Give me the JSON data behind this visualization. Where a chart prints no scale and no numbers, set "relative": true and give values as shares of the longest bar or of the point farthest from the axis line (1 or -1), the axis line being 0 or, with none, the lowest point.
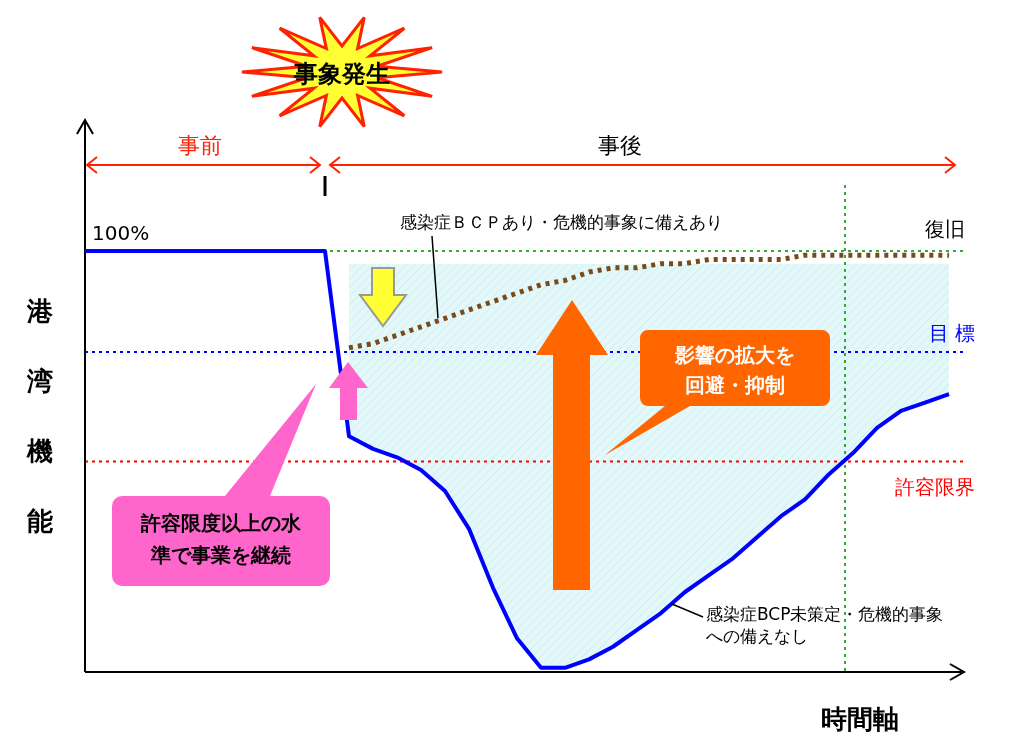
{
  "chart_data": {
    "type": "line",
    "relative": true,
    "xlabel": "時間軸",
    "ylabel": "港湾機能",
    "grid": false,
    "categories": [
      null,
      null,
      null,
      null,
      null,
      null,
      null,
      null,
      null,
      null,
      null,
      null,
      null,
      null,
      null,
      null,
      null,
      null,
      null,
      null,
      null,
      null,
      null,
      null,
      null,
      null,
      null,
      null,
      null,
      null,
      null,
      null,
      null,
      null,
      null,
      null,
      null
    ],
    "series": [
      {
        "name": "感染症ＢＣＰあり・危機的事象に備えあり",
        "color": "#7a4a1a",
        "line_style": "dotted",
        "values": [
          null,
          null,
          null,
          null,
          null,
          null,
          null,
          null,
          null,
          null,
          null,
          0.77,
          0.78,
          0.8,
          0.82,
          0.84,
          0.86,
          0.88,
          0.9,
          0.92,
          0.93,
          0.95,
          0.96,
          0.96,
          0.97,
          0.97,
          0.98,
          0.98,
          0.98,
          0.98,
          0.99,
          0.99,
          0.99,
          0.99,
          0.99,
          0.99,
          0.99
        ]
      },
      {
        "name": "感染症BCP未策定・危機的事象への備えなし",
        "color": "#0000ff",
        "line_style": "solid",
        "values": [
          1,
          1,
          1,
          1,
          1,
          1,
          1,
          1,
          1,
          1,
          1,
          0.56,
          0.53,
          0.51,
          0.48,
          0.43,
          0.34,
          0.2,
          0.08,
          0.01,
          0.01,
          0.03,
          0.06,
          0.1,
          0.14,
          0.19,
          0.23,
          0.27,
          0.32,
          0.37,
          0.41,
          0.47,
          0.52,
          0.58,
          0.62,
          0.64,
          0.66
        ],
        "lower": [
          null,
          null,
          null,
          null,
          null,
          null,
          null,
          null,
          null,
          null,
          null,
          0.56,
          0.53,
          0.51,
          0.48,
          0.43,
          0.34,
          0.2,
          0.08,
          0.01,
          0.01,
          0.03,
          0.06,
          0.1,
          0.14,
          0.19,
          0.23,
          0.27,
          0.32,
          0.37,
          0.41,
          0.47,
          0.52,
          0.58,
          0.62,
          0.64,
          0.66
        ],
        "upper": [
          null,
          null,
          null,
          null,
          null,
          null,
          null,
          null,
          null,
          null,
          null,
          0.97,
          0.97,
          0.97,
          0.97,
          0.97,
          0.97,
          0.97,
          0.97,
          0.97,
          0.97,
          0.97,
          0.97,
          0.97,
          0.97,
          0.97,
          0.97,
          0.97,
          0.97,
          0.97,
          0.97,
          0.97,
          0.97,
          0.97,
          0.97,
          0.97,
          0.97
        ]
      }
    ],
    "ref_lines": [
      {
        "axis": "y",
        "value": 1,
        "color": "#33aa33",
        "line_style": "dotted"
      },
      {
        "axis": "y",
        "value": 0.76,
        "label": "目 標",
        "color": "#0000ff",
        "line_style": "dotted"
      },
      {
        "axis": "y",
        "value": 0.5,
        "label": "許容限界",
        "color": "#ff0000",
        "line_style": "dotted"
      }
    ],
    "annotations": [
      "事象発生",
      "事前",
      "事後",
      "100%",
      "復旧",
      "影響の拡大を回避・抑制",
      "許容限度以上の水準で事業を継続"
    ]
  }
}
